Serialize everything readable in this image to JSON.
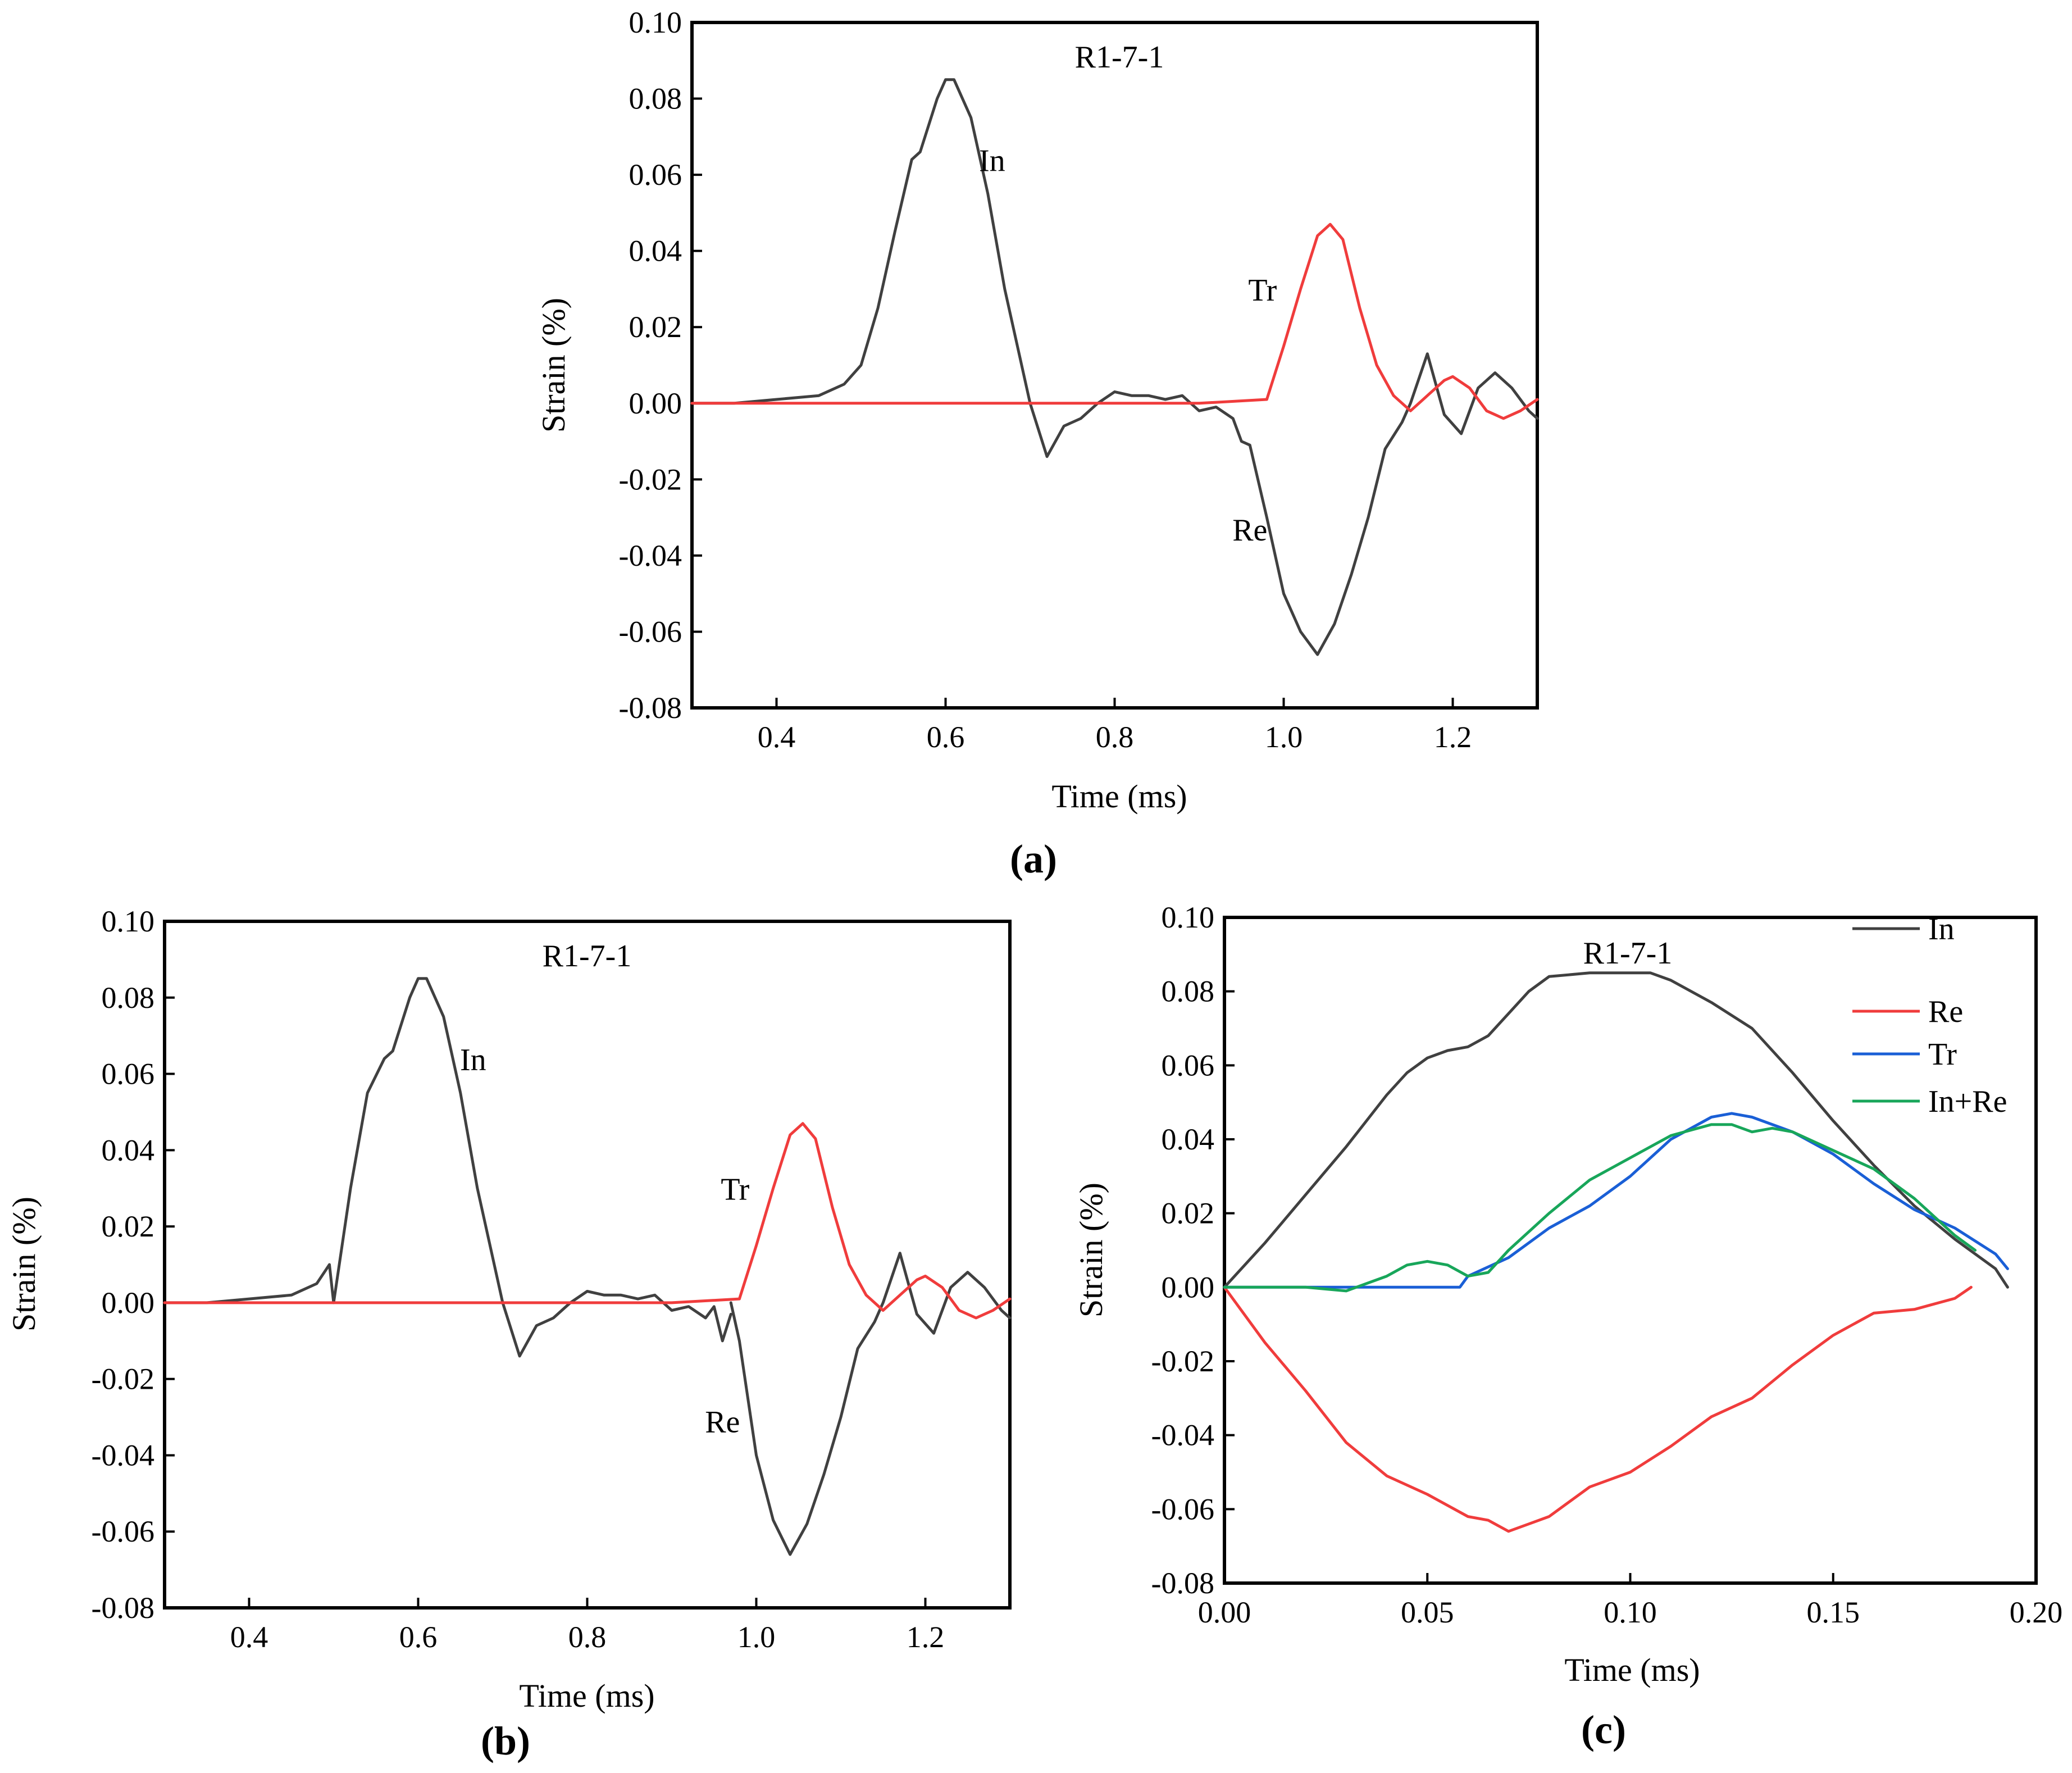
{
  "panels": {
    "a": "(a)",
    "b": "(b)",
    "c": "(c)"
  },
  "colors": {
    "in": "#404040",
    "re": "#f03c3c",
    "tr": "#1a5fd6",
    "inre": "#18a65a"
  },
  "chart_data": [
    {
      "id": "a",
      "type": "line",
      "title": "R1-7-1",
      "xlabel": "Time (ms)",
      "ylabel": "Strain (%)",
      "xlim": [
        0.3,
        1.3
      ],
      "ylim": [
        -0.08,
        0.1
      ],
      "xticks": [
        0.4,
        0.6,
        0.8,
        1.0,
        1.2
      ],
      "xtick_labels": [
        "0.4",
        "0.6",
        "0.8",
        "1.0",
        "1.2"
      ],
      "yticks": [
        -0.08,
        -0.06,
        -0.04,
        -0.02,
        0.0,
        0.02,
        0.04,
        0.06,
        0.08,
        0.1
      ],
      "ytick_labels": [
        "-0.08",
        "-0.06",
        "-0.04",
        "-0.02",
        "0.00",
        "0.02",
        "0.04",
        "0.06",
        "0.08",
        "0.10"
      ],
      "annotations": [
        {
          "text": "In",
          "x": 0.655,
          "y": 0.061
        },
        {
          "text": "Tr",
          "x": 0.975,
          "y": 0.027
        },
        {
          "text": "Re",
          "x": 0.96,
          "y": -0.036
        }
      ],
      "series": [
        {
          "name": "In/Re",
          "color_key": "in",
          "x": [
            0.3,
            0.35,
            0.4,
            0.45,
            0.48,
            0.5,
            0.52,
            0.54,
            0.56,
            0.57,
            0.59,
            0.6,
            0.61,
            0.63,
            0.65,
            0.67,
            0.7,
            0.72,
            0.74,
            0.76,
            0.78,
            0.8,
            0.82,
            0.84,
            0.86,
            0.88,
            0.9,
            0.92,
            0.94,
            0.95,
            0.96,
            0.98,
            1.0,
            1.02,
            1.04,
            1.06,
            1.08,
            1.1,
            1.12,
            1.14,
            1.15,
            1.17,
            1.19,
            1.21,
            1.23,
            1.25,
            1.27,
            1.29,
            1.3
          ],
          "y": [
            0.0,
            0.0,
            0.001,
            0.002,
            0.005,
            0.01,
            0.025,
            0.045,
            0.064,
            0.066,
            0.08,
            0.085,
            0.085,
            0.075,
            0.055,
            0.03,
            0.0,
            -0.014,
            -0.006,
            -0.004,
            0.0,
            0.003,
            0.002,
            0.002,
            0.001,
            0.002,
            -0.002,
            -0.001,
            -0.004,
            -0.01,
            -0.011,
            -0.03,
            -0.05,
            -0.06,
            -0.066,
            -0.058,
            -0.045,
            -0.03,
            -0.012,
            -0.005,
            0.0,
            0.013,
            -0.003,
            -0.008,
            0.004,
            0.008,
            0.004,
            -0.002,
            -0.004
          ]
        },
        {
          "name": "Tr",
          "color_key": "re",
          "x": [
            0.3,
            0.4,
            0.5,
            0.6,
            0.7,
            0.8,
            0.9,
            0.98,
            1.0,
            1.02,
            1.04,
            1.055,
            1.07,
            1.09,
            1.11,
            1.13,
            1.15,
            1.17,
            1.19,
            1.2,
            1.22,
            1.24,
            1.26,
            1.28,
            1.3
          ],
          "y": [
            0.0,
            0.0,
            0.0,
            0.0,
            0.0,
            0.0,
            0.0,
            0.001,
            0.015,
            0.03,
            0.044,
            0.047,
            0.043,
            0.025,
            0.01,
            0.002,
            -0.002,
            0.002,
            0.006,
            0.007,
            0.004,
            -0.002,
            -0.004,
            -0.002,
            0.001
          ]
        }
      ]
    },
    {
      "id": "b",
      "type": "line",
      "title": "R1-7-1",
      "xlabel": "Time (ms)",
      "ylabel": "Strain (%)",
      "xlim": [
        0.3,
        1.3
      ],
      "ylim": [
        -0.08,
        0.1
      ],
      "xticks": [
        0.4,
        0.6,
        0.8,
        1.0,
        1.2
      ],
      "xtick_labels": [
        "0.4",
        "0.6",
        "0.8",
        "1.0",
        "1.2"
      ],
      "yticks": [
        -0.08,
        -0.06,
        -0.04,
        -0.02,
        0.0,
        0.02,
        0.04,
        0.06,
        0.08,
        0.1
      ],
      "ytick_labels": [
        "-0.08",
        "-0.06",
        "-0.04",
        "-0.02",
        "0.00",
        "0.02",
        "0.04",
        "0.06",
        "0.08",
        "0.10"
      ],
      "annotations": [
        {
          "text": "In",
          "x": 0.665,
          "y": 0.061
        },
        {
          "text": "Tr",
          "x": 0.975,
          "y": 0.027
        },
        {
          "text": "Re",
          "x": 0.96,
          "y": -0.034
        }
      ],
      "series": [
        {
          "name": "In",
          "color_key": "in",
          "x": [
            0.3,
            0.35,
            0.4,
            0.45,
            0.48,
            0.495,
            0.5,
            0.52,
            0.54,
            0.56,
            0.57,
            0.59,
            0.6,
            0.61,
            0.63,
            0.65,
            0.67,
            0.7,
            0.72,
            0.74,
            0.76,
            0.78,
            0.8,
            0.82,
            0.84,
            0.86,
            0.88,
            0.9,
            0.92,
            0.94,
            0.95,
            0.96,
            0.97
          ],
          "y": [
            0.0,
            0.0,
            0.001,
            0.002,
            0.005,
            0.01,
            0.0,
            0.03,
            0.055,
            0.064,
            0.066,
            0.08,
            0.085,
            0.085,
            0.075,
            0.055,
            0.03,
            0.0,
            -0.014,
            -0.006,
            -0.004,
            0.0,
            0.003,
            0.002,
            0.002,
            0.001,
            0.002,
            -0.002,
            -0.001,
            -0.004,
            -0.001,
            -0.01,
            -0.003
          ]
        },
        {
          "name": "Re",
          "color_key": "in",
          "x": [
            0.97,
            0.98,
            1.0,
            1.02,
            1.04,
            1.06,
            1.08,
            1.1,
            1.12,
            1.14,
            1.15,
            1.17,
            1.19,
            1.21,
            1.23,
            1.25,
            1.27,
            1.29,
            1.3
          ],
          "y": [
            0.0,
            -0.01,
            -0.04,
            -0.057,
            -0.066,
            -0.058,
            -0.045,
            -0.03,
            -0.012,
            -0.005,
            0.0,
            0.013,
            -0.003,
            -0.008,
            0.004,
            0.008,
            0.004,
            -0.002,
            -0.004
          ]
        },
        {
          "name": "Tr",
          "color_key": "re",
          "x": [
            0.3,
            0.4,
            0.5,
            0.6,
            0.7,
            0.8,
            0.9,
            0.98,
            1.0,
            1.02,
            1.04,
            1.055,
            1.07,
            1.09,
            1.11,
            1.13,
            1.15,
            1.17,
            1.19,
            1.2,
            1.22,
            1.24,
            1.26,
            1.28,
            1.3
          ],
          "y": [
            0.0,
            0.0,
            0.0,
            0.0,
            0.0,
            0.0,
            0.0,
            0.001,
            0.015,
            0.03,
            0.044,
            0.047,
            0.043,
            0.025,
            0.01,
            0.002,
            -0.002,
            0.002,
            0.006,
            0.007,
            0.004,
            -0.002,
            -0.004,
            -0.002,
            0.001
          ]
        }
      ]
    },
    {
      "id": "c",
      "type": "line",
      "title": "R1-7-1",
      "xlabel": "Time (ms)",
      "ylabel": "Strain (%)",
      "xlim": [
        0.0,
        0.2
      ],
      "ylim": [
        -0.08,
        0.1
      ],
      "xticks": [
        0.0,
        0.05,
        0.1,
        0.15,
        0.2
      ],
      "xtick_labels": [
        "0.00",
        "0.05",
        "0.10",
        "0.15",
        "0.20"
      ],
      "yticks": [
        -0.08,
        -0.06,
        -0.04,
        -0.02,
        0.0,
        0.02,
        0.04,
        0.06,
        0.08,
        0.1
      ],
      "ytick_labels": [
        "-0.08",
        "-0.06",
        "-0.04",
        "-0.02",
        "0.00",
        "0.02",
        "0.04",
        "0.06",
        "0.08",
        "0.10"
      ],
      "legend": {
        "position": "top-right",
        "entries": [
          "In",
          "Re",
          "Tr",
          "In+Re"
        ]
      },
      "series": [
        {
          "name": "In",
          "color_key": "in",
          "x": [
            0.0,
            0.01,
            0.02,
            0.03,
            0.04,
            0.045,
            0.05,
            0.055,
            0.06,
            0.065,
            0.07,
            0.075,
            0.08,
            0.09,
            0.1,
            0.105,
            0.11,
            0.12,
            0.13,
            0.14,
            0.15,
            0.16,
            0.17,
            0.18,
            0.19,
            0.193
          ],
          "y": [
            0.0,
            0.012,
            0.025,
            0.038,
            0.052,
            0.058,
            0.062,
            0.064,
            0.065,
            0.068,
            0.074,
            0.08,
            0.084,
            0.085,
            0.085,
            0.085,
            0.083,
            0.077,
            0.07,
            0.058,
            0.045,
            0.033,
            0.022,
            0.013,
            0.005,
            0.0
          ]
        },
        {
          "name": "Re",
          "color_key": "re",
          "x": [
            0.0,
            0.01,
            0.02,
            0.03,
            0.04,
            0.05,
            0.06,
            0.065,
            0.07,
            0.075,
            0.08,
            0.09,
            0.1,
            0.11,
            0.12,
            0.13,
            0.14,
            0.15,
            0.16,
            0.17,
            0.18,
            0.184
          ],
          "y": [
            0.0,
            -0.015,
            -0.028,
            -0.042,
            -0.051,
            -0.056,
            -0.062,
            -0.063,
            -0.066,
            -0.064,
            -0.062,
            -0.054,
            -0.05,
            -0.043,
            -0.035,
            -0.03,
            -0.021,
            -0.013,
            -0.007,
            -0.006,
            -0.003,
            0.0
          ]
        },
        {
          "name": "Tr",
          "color_key": "tr",
          "x": [
            0.0,
            0.02,
            0.04,
            0.058,
            0.06,
            0.07,
            0.08,
            0.09,
            0.1,
            0.11,
            0.12,
            0.125,
            0.13,
            0.14,
            0.15,
            0.16,
            0.17,
            0.18,
            0.19,
            0.193
          ],
          "y": [
            0.0,
            0.0,
            0.0,
            0.0,
            0.003,
            0.008,
            0.016,
            0.022,
            0.03,
            0.04,
            0.046,
            0.047,
            0.046,
            0.042,
            0.036,
            0.028,
            0.021,
            0.016,
            0.009,
            0.005
          ]
        },
        {
          "name": "In+Re",
          "color_key": "inre",
          "x": [
            0.0,
            0.02,
            0.03,
            0.04,
            0.045,
            0.05,
            0.055,
            0.06,
            0.065,
            0.07,
            0.08,
            0.09,
            0.1,
            0.11,
            0.12,
            0.125,
            0.13,
            0.135,
            0.14,
            0.15,
            0.16,
            0.17,
            0.18,
            0.185
          ],
          "y": [
            0.0,
            0.0,
            -0.001,
            0.003,
            0.006,
            0.007,
            0.006,
            0.003,
            0.004,
            0.01,
            0.02,
            0.029,
            0.035,
            0.041,
            0.044,
            0.044,
            0.042,
            0.043,
            0.042,
            0.037,
            0.032,
            0.024,
            0.014,
            0.01
          ]
        }
      ]
    }
  ]
}
